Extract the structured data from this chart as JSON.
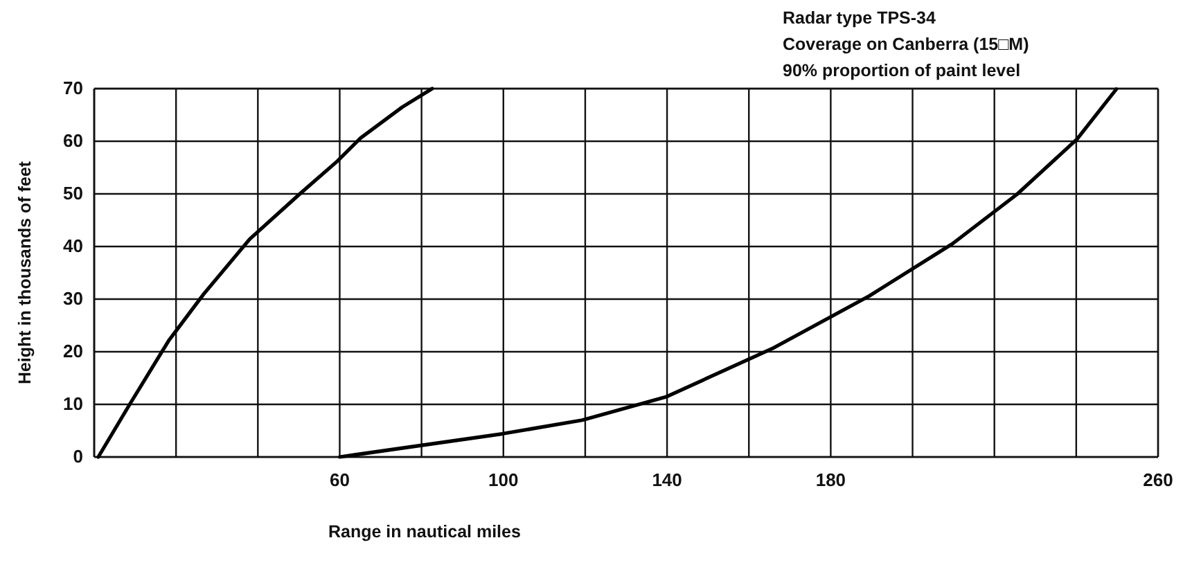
{
  "chart_data": {
    "type": "line",
    "title": "Radar type TPS-34",
    "subtitle": "Coverage on Canberra (15□M)\n90% proportion of paint level",
    "xlabel": "Range in nautical miles",
    "ylabel": "Height in thousands of feet",
    "xlim": [
      0,
      260
    ],
    "xticks": [
      {
        "value": 0,
        "label": null
      },
      {
        "value": 20,
        "label": null
      },
      {
        "value": 40,
        "label": null
      },
      60,
      {
        "value": 80,
        "label": null
      },
      100,
      {
        "value": 120,
        "label": null
      },
      140,
      {
        "value": 160,
        "label": null
      },
      180,
      {
        "value": 200,
        "label": null
      },
      {
        "value": 220,
        "label": null
      },
      {
        "value": 240,
        "label": null
      },
      260
    ],
    "ylim": [
      0,
      70
    ],
    "yticks": [
      0,
      10,
      20,
      30,
      40,
      50,
      60,
      70
    ],
    "grid": true,
    "series": [
      {
        "color": "#000000",
        "x": [
          1,
          8.6,
          18.2,
          26.7,
          38,
          50.4,
          59.4,
          65.1,
          75.3,
          82.6
        ],
        "values": [
          0,
          9.9,
          22.1,
          30.9,
          41.4,
          50.1,
          56.2,
          60.6,
          66.5,
          70
        ]
      },
      {
        "color": "#000000",
        "x": [
          60,
          99.7,
          119.3,
          139.7,
          165.7,
          189.4,
          209.7,
          225.5,
          240.2,
          249.8
        ],
        "values": [
          0,
          4.4,
          7,
          11.4,
          20.6,
          30.6,
          40.5,
          49.9,
          60.4,
          69.9
        ]
      }
    ]
  }
}
